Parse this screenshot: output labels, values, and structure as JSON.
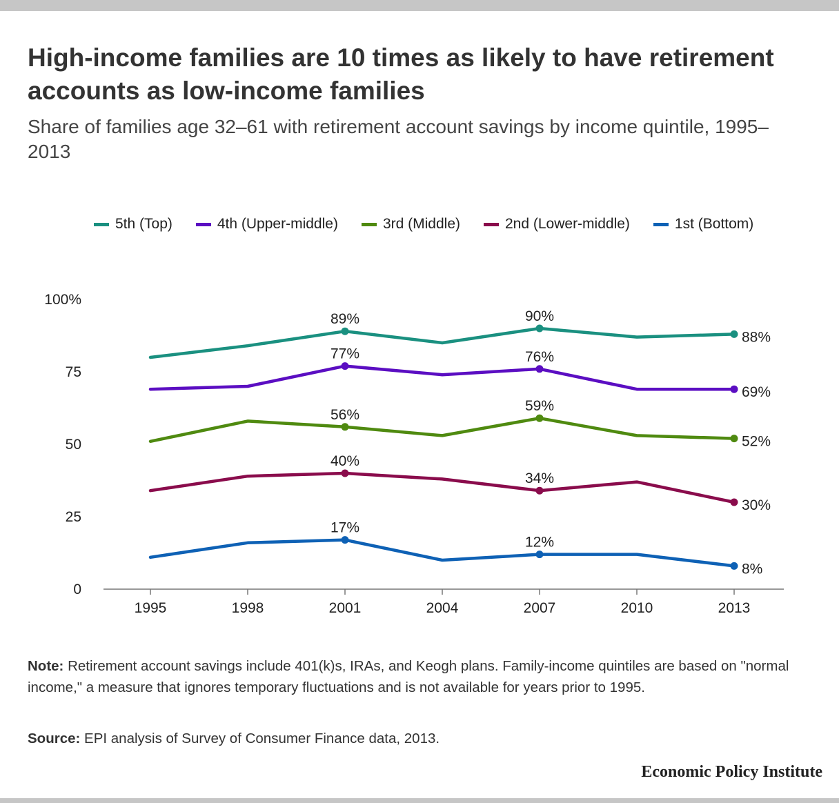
{
  "chart_data": {
    "type": "line",
    "title": "High-income families are 10 times as likely to have retirement accounts as low-income families",
    "subtitle": "Share of families age 32–61 with retirement account savings by income quintile, 1995–2013",
    "categories": [
      "1995",
      "1998",
      "2001",
      "2004",
      "2007",
      "2010",
      "2013"
    ],
    "ylim": [
      0,
      100
    ],
    "yticks": [
      0,
      25,
      50,
      75,
      100
    ],
    "ytick_labels": [
      "0",
      "25",
      "50",
      "75",
      "100%"
    ],
    "grid": false,
    "legend": "top",
    "series": [
      {
        "name": "5th (Top)",
        "color": "#1a9080",
        "values": [
          80,
          84,
          89,
          85,
          90,
          87,
          88
        ],
        "value_labels": [
          "",
          "",
          "89%",
          "",
          "90%",
          "",
          "88%"
        ]
      },
      {
        "name": "4th (Upper-middle)",
        "color": "#5b0ec2",
        "values": [
          69,
          70,
          77,
          74,
          76,
          69,
          69
        ],
        "value_labels": [
          "",
          "",
          "77%",
          "",
          "76%",
          "",
          "69%"
        ]
      },
      {
        "name": "3rd (Middle)",
        "color": "#4f8a10",
        "values": [
          51,
          58,
          56,
          53,
          59,
          53,
          52
        ],
        "value_labels": [
          "",
          "",
          "56%",
          "",
          "59%",
          "",
          "52%"
        ]
      },
      {
        "name": "2nd (Lower-middle)",
        "color": "#8a0c4c",
        "values": [
          34,
          39,
          40,
          38,
          34,
          37,
          30
        ],
        "value_labels": [
          "",
          "",
          "40%",
          "",
          "34%",
          "",
          "30%"
        ]
      },
      {
        "name": "1st (Bottom)",
        "color": "#0e61b5",
        "values": [
          11,
          16,
          17,
          10,
          12,
          12,
          8
        ],
        "value_labels": [
          "",
          "",
          "17%",
          "",
          "12%",
          "",
          "8%"
        ]
      }
    ]
  },
  "note": {
    "label": "Note:",
    "text": " Retirement account savings include 401(k)s, IRAs, and Keogh plans. Family-income quintiles are based on \"normal income,\" a measure that ignores temporary fluctuations and is not available for years prior to 1995."
  },
  "source": {
    "label": "Source:",
    "text": " EPI analysis of  Survey of Consumer Finance data, 2013."
  },
  "brand": "Economic Policy Institute"
}
